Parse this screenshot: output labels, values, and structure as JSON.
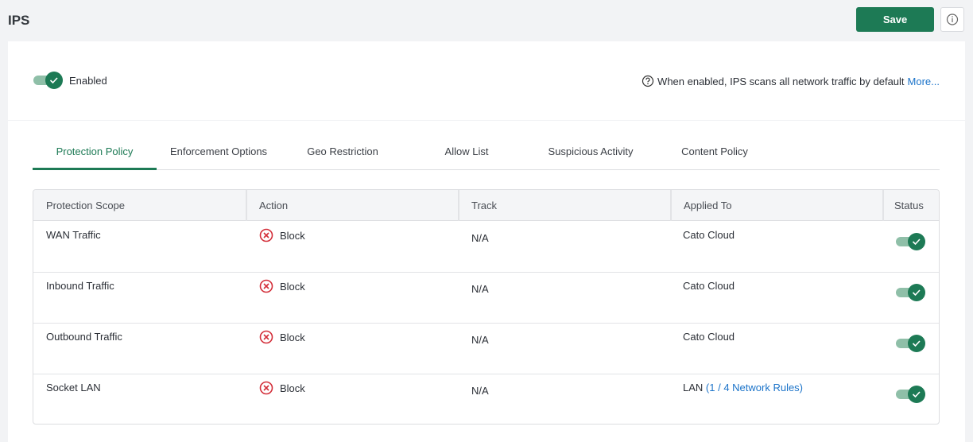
{
  "header": {
    "title": "IPS",
    "save": "Save"
  },
  "status": {
    "enabled_label": "Enabled",
    "info_text": "When enabled, IPS scans all network traffic by default",
    "info_link": "More..."
  },
  "tabs": [
    "Protection Policy",
    "Enforcement Options",
    "Geo Restriction",
    "Allow List",
    "Suspicious Activity",
    "Content Policy"
  ],
  "table": {
    "columns": [
      "Protection Scope",
      "Action",
      "Track",
      "Applied To",
      "Status"
    ],
    "rows": [
      {
        "scope": "WAN Traffic",
        "action": "Block",
        "track": "N/A",
        "applied_to": "Cato Cloud"
      },
      {
        "scope": "Inbound Traffic",
        "action": "Block",
        "track": "N/A",
        "applied_to": "Cato Cloud"
      },
      {
        "scope": "Outbound Traffic",
        "action": "Block",
        "track": "N/A",
        "applied_to": "Cato Cloud"
      },
      {
        "scope": "Socket LAN",
        "action": "Block",
        "track": "N/A",
        "applied_to": "LAN",
        "applied_to_link": "(1 / 4 Network Rules)"
      }
    ]
  }
}
